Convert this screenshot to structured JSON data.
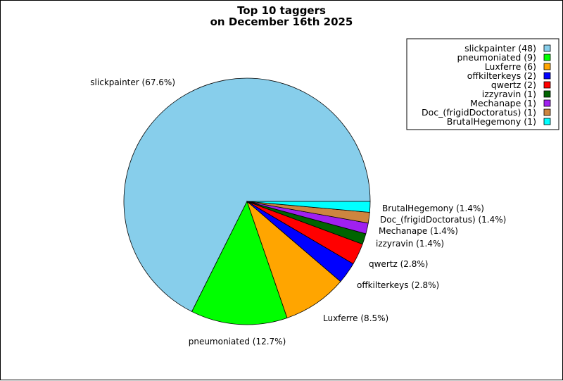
{
  "chart_data": {
    "type": "pie",
    "title": [
      "Top 10 taggers",
      "on December 16th 2025"
    ],
    "legend_position": "top-right",
    "slices": [
      {
        "name": "slickpainter",
        "value": 48,
        "label": "slickpainter (67.6%)",
        "legend": "slickpainter (48)",
        "color": "#87ceeb"
      },
      {
        "name": "pneumoniated",
        "value": 9,
        "label": "pneumoniated (12.7%)",
        "legend": "pneumoniated (9)",
        "color": "#00ff00"
      },
      {
        "name": "Luxferre",
        "value": 6,
        "label": "Luxferre (8.5%)",
        "legend": "Luxferre (6)",
        "color": "#ffa500"
      },
      {
        "name": "offkilterkeys",
        "value": 2,
        "label": "offkilterkeys (2.8%)",
        "legend": "offkilterkeys (2)",
        "color": "#0000ff"
      },
      {
        "name": "qwertz",
        "value": 2,
        "label": "qwertz (2.8%)",
        "legend": "qwertz (2)",
        "color": "#ff0000"
      },
      {
        "name": "izzyravin",
        "value": 1,
        "label": "izzyravin (1.4%)",
        "legend": "izzyravin (1)",
        "color": "#006400"
      },
      {
        "name": "Mechanape",
        "value": 1,
        "label": "Mechanape (1.4%)",
        "legend": "Mechanape (1)",
        "color": "#a020f0"
      },
      {
        "name": "Doc_(frigidDoctoratus)",
        "value": 1,
        "label": "Doc_(frigidDoctoratus) (1.4%)",
        "legend": "Doc_(frigidDoctoratus) (1)",
        "color": "#cd853f"
      },
      {
        "name": "BrutalHegemony",
        "value": 1,
        "label": "BrutalHegemony (1.4%)",
        "legend": "BrutalHegemony (1)",
        "color": "#00ffff"
      }
    ]
  }
}
